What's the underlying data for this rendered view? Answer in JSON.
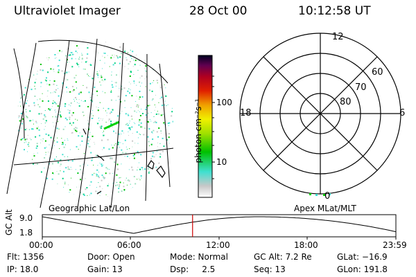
{
  "header": {
    "title": "Ultraviolet Imager",
    "date": "28 Oct 00",
    "time": "10:12:58 UT"
  },
  "colorbar": {
    "label": "photon cm⁻²s⁻¹",
    "ticks": [
      "100",
      "10"
    ]
  },
  "map_panel": {
    "caption": "Geographic Lat/Lon"
  },
  "polar_panel": {
    "caption": "Apex MLat/MLT",
    "mlt_labels": {
      "top": "12",
      "left": "18",
      "right": "6",
      "bottom": "0"
    },
    "lat_labels": [
      "60",
      "70",
      "80"
    ]
  },
  "altitude_plot": {
    "ylabel": "GC Alt",
    "yticks": [
      "9.0",
      "1.8"
    ],
    "xticks": [
      "00:00",
      "06:00",
      "12:00",
      "18:00",
      "23:59"
    ],
    "marker_time_hours": 10.2,
    "marker_color": "#cc0000"
  },
  "info": {
    "col1": [
      "Flt: 1356",
      "IP: 18.0"
    ],
    "col2": [
      "Door: Open",
      "Gain: 13"
    ],
    "col3": [
      "Mode: Normal",
      "Dsp:     2.5"
    ],
    "col4": [
      "GC Alt: 7.2 Re",
      "Seq: 13"
    ],
    "col5": [
      "GLat: −16.9",
      "GLon: 191.8"
    ]
  }
}
